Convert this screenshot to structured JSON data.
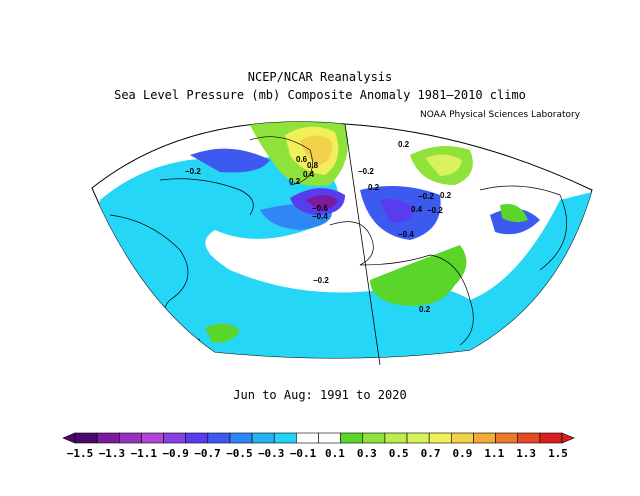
{
  "title": "NCEP/NCAR Reanalysis",
  "subtitle": "Sea Level Pressure (mb) Composite Anomaly 1981–2010 climo",
  "source_label": "NOAA Physical Sciences Laboratory",
  "period_label": "Jun to Aug: 1991 to 2020",
  "colorbar": {
    "labels": [
      "−1.5",
      "−1.3",
      "−1.1",
      "−0.9",
      "−0.7",
      "−0.5",
      "−0.3",
      "−0.1",
      "0.1",
      "0.3",
      "0.5",
      "0.7",
      "0.9",
      "1.1",
      "1.3",
      "1.5"
    ],
    "colors": [
      "#4a0a6b",
      "#7d1b9e",
      "#9b2fbf",
      "#b145d6",
      "#8a3fe0",
      "#5a3cf0",
      "#3d5af0",
      "#2f86f5",
      "#25b2f5",
      "#20d4f7",
      "#ffffff",
      "#ffffff",
      "#5ad62b",
      "#8ee23a",
      "#b8ec4f",
      "#d8f25e",
      "#f2f05a",
      "#f2d24a",
      "#f0ab38",
      "#ec7a2c",
      "#e64a22",
      "#d81f1f"
    ]
  },
  "contour_labels": {
    "a": "0.2",
    "b": "0.8",
    "c": "0.6",
    "d": "0.4",
    "e": "0.2",
    "f": "−0.2",
    "g": "−0.6",
    "h": "−0.4",
    "i": "0.2",
    "j": "−0.2",
    "k": "−0.4",
    "l": "−0.2",
    "m": "−0.2",
    "n": "0.2",
    "o": "0.4",
    "p": "−0.2",
    "q": "0.2"
  }
}
